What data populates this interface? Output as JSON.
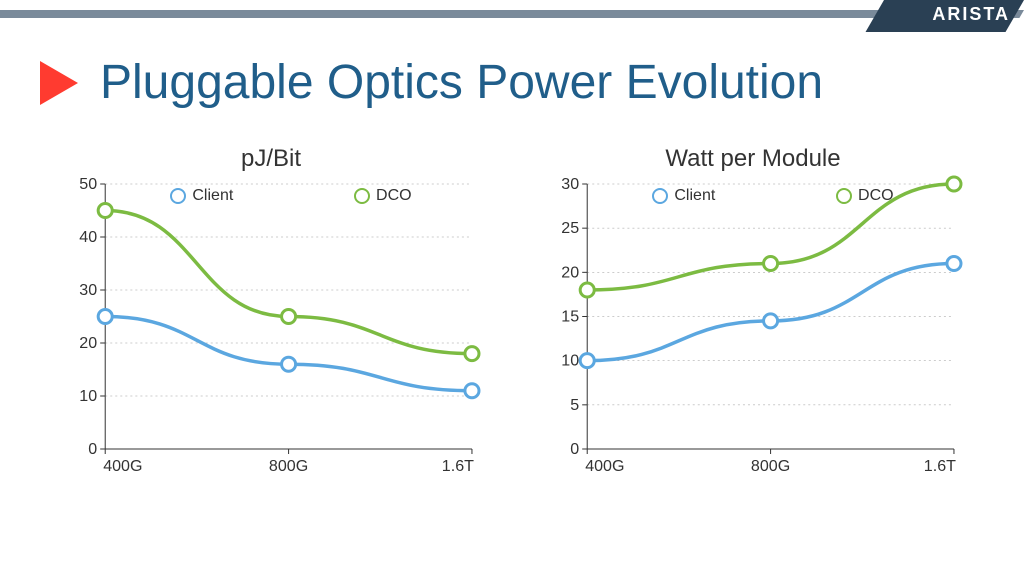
{
  "brand": {
    "name": "ARISTA"
  },
  "page_title": "Pluggable Optics Power Evolution",
  "colors": {
    "client": "#5ba7e0",
    "dco": "#7cbb42",
    "axis": "#333333",
    "grid": "#999999",
    "title": "#205e8a",
    "arrow": "#ff3b30",
    "bg": "#ffffff"
  },
  "charts": [
    {
      "id": "pj",
      "title": "pJ/Bit",
      "type": "line",
      "x_categories": [
        "400G",
        "800G",
        "1.6T"
      ],
      "ylim": [
        0,
        50
      ],
      "ytick_step": 10,
      "series": [
        {
          "name": "Client",
          "color_key": "client",
          "values": [
            25,
            16,
            11
          ]
        },
        {
          "name": "DCO",
          "color_key": "dco",
          "values": [
            45,
            25,
            18
          ]
        }
      ]
    },
    {
      "id": "watt",
      "title": "Watt per Module",
      "type": "line",
      "x_categories": [
        "400G",
        "800G",
        "1.6T"
      ],
      "ylim": [
        0,
        30
      ],
      "ytick_step": 5,
      "series": [
        {
          "name": "Client",
          "color_key": "client",
          "values": [
            10,
            14.5,
            21
          ]
        },
        {
          "name": "DCO",
          "color_key": "dco",
          "values": [
            18,
            21,
            30
          ]
        }
      ]
    }
  ],
  "chart_style": {
    "title_fontsize": 24,
    "tick_fontsize": 16,
    "line_width": 3.5,
    "marker_radius": 7,
    "marker_stroke": 3,
    "grid_dash": "2 3"
  }
}
